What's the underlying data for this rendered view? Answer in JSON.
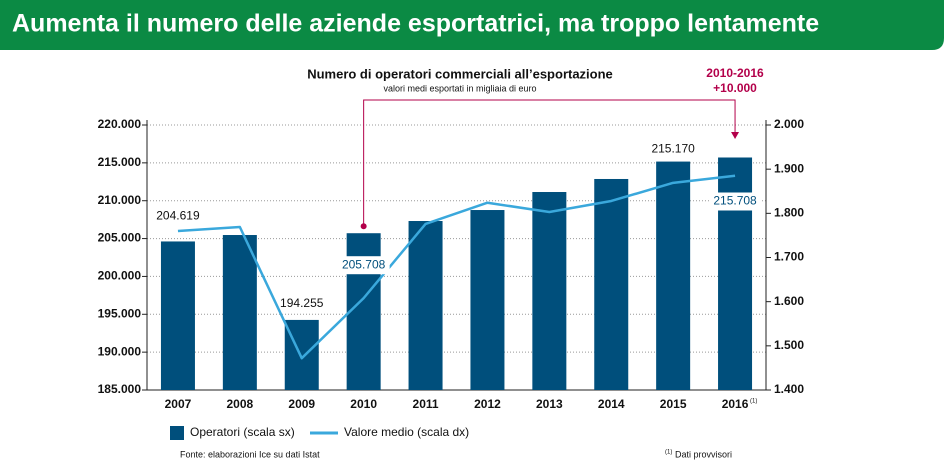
{
  "header": {
    "title": "Aumenta il numero delle aziende esportatrici, ma troppo lentamente"
  },
  "chart_data": {
    "type": "bar",
    "title": "Numero di operatori commerciali all’esportazione",
    "subtitle": "valori medi esportati in migliaia di euro",
    "annotation": {
      "title": "2010-2016",
      "text": "+10.000"
    },
    "categories": [
      "2007",
      "2008",
      "2009",
      "2010",
      "2011",
      "2012",
      "2013",
      "2014",
      "2015",
      "2016"
    ],
    "category_note": "(1)",
    "series": [
      {
        "name": "Operatori (scala sx)",
        "type": "bar",
        "color": "#004f7c",
        "values": [
          204619,
          205470,
          194255,
          205708,
          207320,
          208770,
          211150,
          212870,
          215170,
          215708
        ],
        "value_labels": [
          "204.619",
          null,
          "194.255",
          "205.708",
          null,
          null,
          null,
          null,
          "215.170",
          "215.708"
        ]
      },
      {
        "name": "Valore medio (scala dx)",
        "type": "line",
        "axis": "y2",
        "color": "#3aa8dc",
        "values": [
          1760,
          1769,
          1472,
          1608,
          1776,
          1824,
          1803,
          1828,
          1869,
          1885
        ]
      }
    ],
    "ylim": [
      185000,
      220000
    ],
    "yticks": [
      {
        "value": 185000,
        "label": "185.000"
      },
      {
        "value": 190000,
        "label": "190.000"
      },
      {
        "value": 195000,
        "label": "195.000"
      },
      {
        "value": 200000,
        "label": "200.000"
      },
      {
        "value": 205000,
        "label": "205.000"
      },
      {
        "value": 210000,
        "label": "210.000"
      },
      {
        "value": 215000,
        "label": "215.000"
      },
      {
        "value": 220000,
        "label": "220.000"
      }
    ],
    "y2lim": [
      1400,
      2000
    ],
    "y2ticks": [
      {
        "value": 1400,
        "label": "1.400"
      },
      {
        "value": 1500,
        "label": "1.500"
      },
      {
        "value": 1600,
        "label": "1.600"
      },
      {
        "value": 1700,
        "label": "1.700"
      },
      {
        "value": 1800,
        "label": "1.800"
      },
      {
        "value": 1900,
        "label": "1.900"
      },
      {
        "value": 2000,
        "label": "2.000"
      }
    ],
    "grid": true,
    "source": "Fonte: elaborazioni Ice su dati Istat",
    "footnote_marker": "(1)",
    "footnote": "Dati provvisori"
  }
}
